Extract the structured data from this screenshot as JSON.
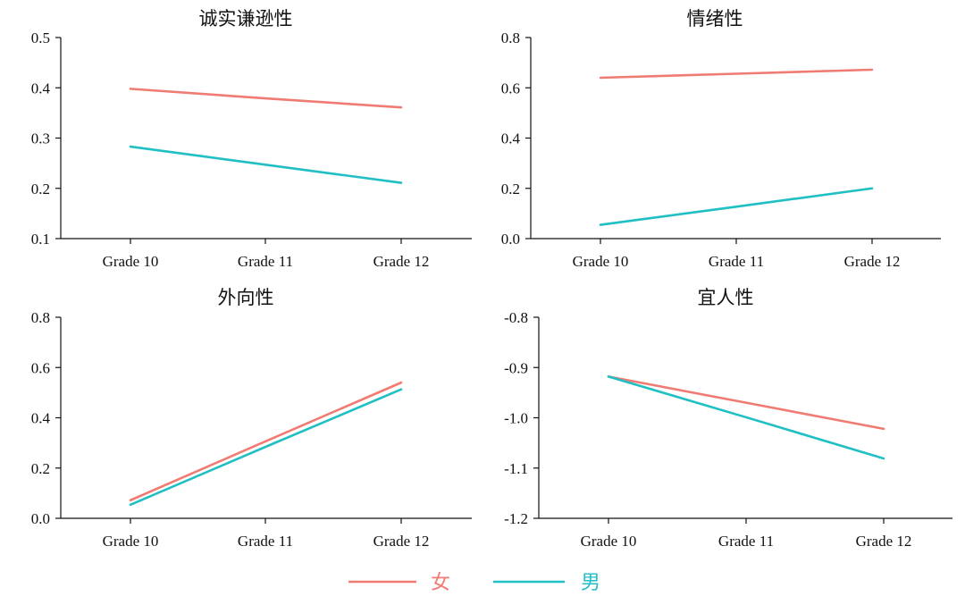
{
  "colors": {
    "female": "#f07b72",
    "male": "#1fbfc4"
  },
  "legend": [
    {
      "label": "女",
      "series": "female"
    },
    {
      "label": "男",
      "series": "male"
    }
  ],
  "chart_data": [
    {
      "type": "line",
      "title": "诚实谦逊性",
      "categories": [
        "Grade 10",
        "Grade 11",
        "Grade 12"
      ],
      "ylim": [
        0.1,
        0.5
      ],
      "yticks": [
        "0.1",
        "0.2",
        "0.3",
        "0.4",
        "0.5"
      ],
      "series": [
        {
          "name": "女",
          "key": "female",
          "values": [
            0.398,
            0.379,
            0.361
          ]
        },
        {
          "name": "男",
          "key": "male",
          "values": [
            0.283,
            0.247,
            0.211
          ]
        }
      ]
    },
    {
      "type": "line",
      "title": "情绪性",
      "categories": [
        "Grade 10",
        "Grade 11",
        "Grade 12"
      ],
      "ylim": [
        0.0,
        0.8
      ],
      "yticks": [
        "0.0",
        "0.2",
        "0.4",
        "0.6",
        "0.8"
      ],
      "series": [
        {
          "name": "女",
          "key": "female",
          "values": [
            0.64,
            0.656,
            0.672
          ]
        },
        {
          "name": "男",
          "key": "male",
          "values": [
            0.055,
            0.127,
            0.2
          ]
        }
      ]
    },
    {
      "type": "line",
      "title": "外向性",
      "categories": [
        "Grade 10",
        "Grade 11",
        "Grade 12"
      ],
      "ylim": [
        0.0,
        0.8
      ],
      "yticks": [
        "0.0",
        "0.2",
        "0.4",
        "0.6",
        "0.8"
      ],
      "series": [
        {
          "name": "女",
          "key": "female",
          "values": [
            0.072,
            0.306,
            0.54
          ]
        },
        {
          "name": "男",
          "key": "male",
          "values": [
            0.054,
            0.284,
            0.513
          ]
        }
      ]
    },
    {
      "type": "line",
      "title": "宜人性",
      "categories": [
        "Grade 10",
        "Grade 11",
        "Grade 12"
      ],
      "ylim": [
        -1.2,
        -0.8
      ],
      "yticks": [
        "-1.2",
        "-1.1",
        "-1.0",
        "-0.9",
        "-0.8"
      ],
      "series": [
        {
          "name": "女",
          "key": "female",
          "values": [
            -0.918,
            -0.97,
            -1.022
          ]
        },
        {
          "name": "男",
          "key": "male",
          "values": [
            -0.918,
            -0.999,
            -1.081
          ]
        }
      ]
    }
  ]
}
